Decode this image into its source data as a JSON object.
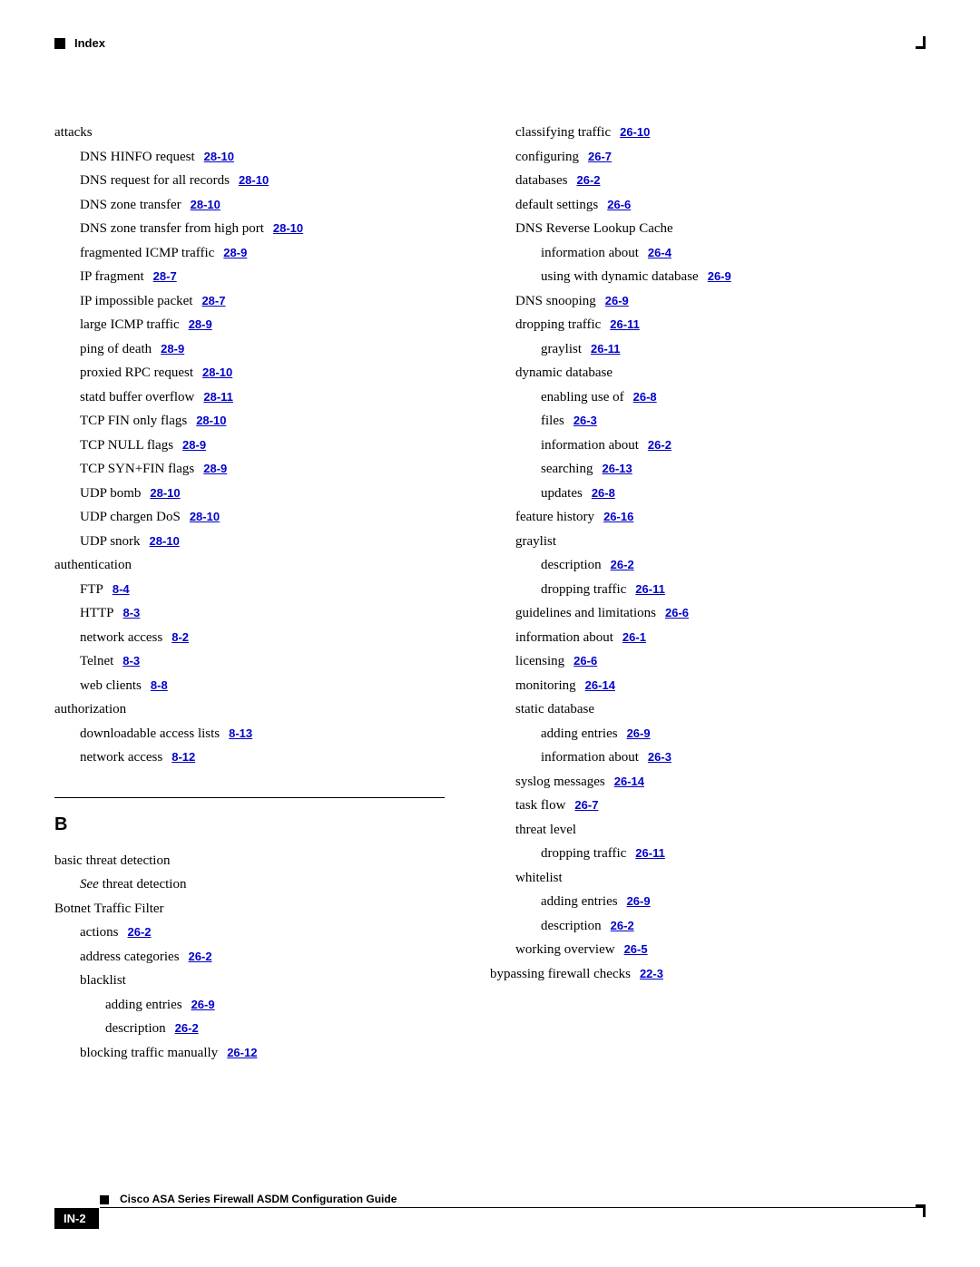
{
  "header": {
    "label": "Index"
  },
  "footer": {
    "title": "Cisco ASA Series Firewall ASDM Configuration Guide",
    "page_badge": "IN-2"
  },
  "section_letter": "B",
  "left_column": [
    {
      "level": 0,
      "text": "attacks"
    },
    {
      "level": 1,
      "text": "DNS HINFO request",
      "ref": "28-10"
    },
    {
      "level": 1,
      "text": "DNS request for all records",
      "ref": "28-10"
    },
    {
      "level": 1,
      "text": "DNS zone transfer",
      "ref": "28-10"
    },
    {
      "level": 1,
      "text": "DNS zone transfer from high port",
      "ref": "28-10"
    },
    {
      "level": 1,
      "text": "fragmented ICMP traffic",
      "ref": "28-9"
    },
    {
      "level": 1,
      "text": "IP fragment",
      "ref": "28-7"
    },
    {
      "level": 1,
      "text": "IP impossible packet",
      "ref": "28-7"
    },
    {
      "level": 1,
      "text": "large ICMP traffic",
      "ref": "28-9"
    },
    {
      "level": 1,
      "text": "ping of death",
      "ref": "28-9"
    },
    {
      "level": 1,
      "text": "proxied RPC request",
      "ref": "28-10"
    },
    {
      "level": 1,
      "text": "statd buffer overflow",
      "ref": "28-11"
    },
    {
      "level": 1,
      "text": "TCP FIN only flags",
      "ref": "28-10"
    },
    {
      "level": 1,
      "text": "TCP NULL flags",
      "ref": "28-9"
    },
    {
      "level": 1,
      "text": "TCP SYN+FIN flags",
      "ref": "28-9"
    },
    {
      "level": 1,
      "text": "UDP bomb",
      "ref": "28-10"
    },
    {
      "level": 1,
      "text": "UDP chargen DoS",
      "ref": "28-10"
    },
    {
      "level": 1,
      "text": "UDP snork",
      "ref": "28-10"
    },
    {
      "level": 0,
      "text": "authentication"
    },
    {
      "level": 1,
      "text": "FTP",
      "ref": "8-4"
    },
    {
      "level": 1,
      "text": "HTTP",
      "ref": "8-3"
    },
    {
      "level": 1,
      "text": "network access",
      "ref": "8-2"
    },
    {
      "level": 1,
      "text": "Telnet",
      "ref": "8-3"
    },
    {
      "level": 1,
      "text": "web clients",
      "ref": "8-8"
    },
    {
      "level": 0,
      "text": "authorization"
    },
    {
      "level": 1,
      "text": "downloadable access lists",
      "ref": "8-13"
    },
    {
      "level": 1,
      "text": "network access",
      "ref": "8-12"
    }
  ],
  "left_section_b": [
    {
      "level": 0,
      "text": "basic threat detection"
    },
    {
      "level": 1,
      "italic_prefix": "See",
      "text": " threat detection"
    },
    {
      "level": 0,
      "text": "Botnet Traffic Filter"
    },
    {
      "level": 1,
      "text": "actions",
      "ref": "26-2"
    },
    {
      "level": 1,
      "text": "address categories",
      "ref": "26-2"
    },
    {
      "level": 1,
      "text": "blacklist"
    },
    {
      "level": 2,
      "text": "adding entries",
      "ref": "26-9"
    },
    {
      "level": 2,
      "text": "description",
      "ref": "26-2"
    },
    {
      "level": 1,
      "text": "blocking traffic manually",
      "ref": "26-12"
    }
  ],
  "right_column": [
    {
      "level": 1,
      "text": "classifying traffic",
      "ref": "26-10"
    },
    {
      "level": 1,
      "text": "configuring",
      "ref": "26-7"
    },
    {
      "level": 1,
      "text": "databases",
      "ref": "26-2"
    },
    {
      "level": 1,
      "text": "default settings",
      "ref": "26-6"
    },
    {
      "level": 1,
      "text": "DNS Reverse Lookup Cache"
    },
    {
      "level": 2,
      "text": "information about",
      "ref": "26-4"
    },
    {
      "level": 2,
      "text": "using with dynamic database",
      "ref": "26-9"
    },
    {
      "level": 1,
      "text": "DNS snooping",
      "ref": "26-9"
    },
    {
      "level": 1,
      "text": "dropping traffic",
      "ref": "26-11"
    },
    {
      "level": 2,
      "text": "graylist",
      "ref": "26-11"
    },
    {
      "level": 1,
      "text": "dynamic database"
    },
    {
      "level": 2,
      "text": "enabling use of",
      "ref": "26-8"
    },
    {
      "level": 2,
      "text": "files",
      "ref": "26-3"
    },
    {
      "level": 2,
      "text": "information about",
      "ref": "26-2"
    },
    {
      "level": 2,
      "text": "searching",
      "ref": "26-13"
    },
    {
      "level": 2,
      "text": "updates",
      "ref": "26-8"
    },
    {
      "level": 1,
      "text": "feature history",
      "ref": "26-16"
    },
    {
      "level": 1,
      "text": "graylist"
    },
    {
      "level": 2,
      "text": "description",
      "ref": "26-2"
    },
    {
      "level": 2,
      "text": "dropping traffic",
      "ref": "26-11"
    },
    {
      "level": 1,
      "text": "guidelines and limitations",
      "ref": "26-6"
    },
    {
      "level": 1,
      "text": "information about",
      "ref": "26-1"
    },
    {
      "level": 1,
      "text": "licensing",
      "ref": "26-6"
    },
    {
      "level": 1,
      "text": "monitoring",
      "ref": "26-14"
    },
    {
      "level": 1,
      "text": "static database"
    },
    {
      "level": 2,
      "text": "adding entries",
      "ref": "26-9"
    },
    {
      "level": 2,
      "text": "information about",
      "ref": "26-3"
    },
    {
      "level": 1,
      "text": "syslog messages",
      "ref": "26-14"
    },
    {
      "level": 1,
      "text": "task flow",
      "ref": "26-7"
    },
    {
      "level": 1,
      "text": "threat level"
    },
    {
      "level": 2,
      "text": "dropping traffic",
      "ref": "26-11"
    },
    {
      "level": 1,
      "text": "whitelist"
    },
    {
      "level": 2,
      "text": "adding entries",
      "ref": "26-9"
    },
    {
      "level": 2,
      "text": "description",
      "ref": "26-2"
    },
    {
      "level": 1,
      "text": "working overview",
      "ref": "26-5"
    },
    {
      "level": 0,
      "text": "bypassing firewall checks",
      "ref": "22-3"
    }
  ]
}
